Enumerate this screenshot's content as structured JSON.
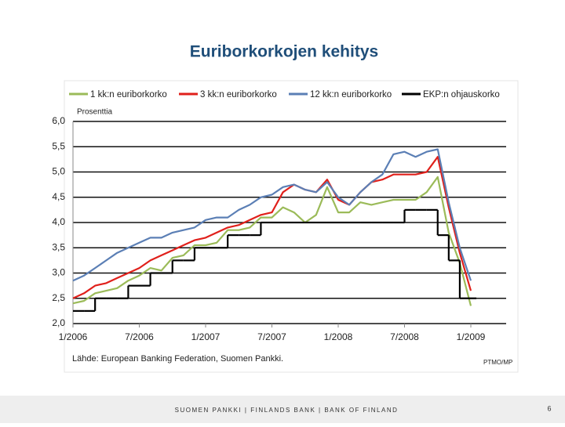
{
  "slide": {
    "footer": "SUOMEN PANKKI | FINLANDS BANK | BANK OF FINLAND",
    "page_number": "6"
  },
  "chart_data": {
    "type": "line",
    "title": "Euriborkorkojen kehitys",
    "y_label": "Prosenttia",
    "source": "Lähde: European Banking Federation, Suomen Pankki.",
    "note": "PTMO/MP",
    "categories": [
      "1/2006",
      null,
      null,
      null,
      null,
      null,
      "7/2006",
      null,
      null,
      null,
      null,
      null,
      "1/2007",
      null,
      null,
      null,
      null,
      null,
      "7/2007",
      null,
      null,
      null,
      null,
      null,
      "1/2008",
      null,
      null,
      null,
      null,
      null,
      "7/2008",
      null,
      null,
      null,
      null,
      null,
      "1/2009",
      null,
      null,
      null
    ],
    "ylim": [
      2,
      6
    ],
    "yticks": [
      {
        "value": 2,
        "label": "2,0"
      },
      {
        "value": 2.5,
        "label": "2,5"
      },
      {
        "value": 3,
        "label": "3,0"
      },
      {
        "value": 3.5,
        "label": "3,5"
      },
      {
        "value": 4,
        "label": "4,0"
      },
      {
        "value": 4.5,
        "label": "4,5"
      },
      {
        "value": 5,
        "label": "5,0"
      },
      {
        "value": 5.5,
        "label": "5,5"
      },
      {
        "value": 6,
        "label": "6,0"
      }
    ],
    "grid": true,
    "legend": "top",
    "series": [
      {
        "name": "1 kk:n euriborkorko",
        "color": "#9bbb59",
        "values": [
          2.4,
          2.45,
          2.6,
          2.65,
          2.7,
          2.85,
          2.95,
          3.1,
          3.05,
          3.3,
          3.35,
          3.55,
          3.55,
          3.6,
          3.85,
          3.85,
          3.9,
          4.1,
          4.1,
          4.3,
          4.2,
          4.0,
          4.15,
          4.7,
          4.2,
          4.2,
          4.4,
          4.35,
          4.4,
          4.45,
          4.45,
          4.45,
          4.6,
          4.9,
          3.8,
          3.2,
          2.35,
          null,
          null,
          null
        ]
      },
      {
        "name": "3 kk:n euriborkorko",
        "color": "#e0201b",
        "values": [
          2.5,
          2.6,
          2.75,
          2.8,
          2.9,
          3.0,
          3.1,
          3.25,
          3.35,
          3.45,
          3.55,
          3.65,
          3.7,
          3.8,
          3.9,
          3.95,
          4.05,
          4.15,
          4.2,
          4.6,
          4.75,
          4.65,
          4.6,
          4.85,
          4.45,
          4.35,
          4.6,
          4.8,
          4.85,
          4.95,
          4.95,
          4.95,
          5.0,
          5.3,
          4.3,
          3.4,
          2.65,
          null,
          null,
          null
        ]
      },
      {
        "name": "12 kk:n euriborkorko",
        "color": "#5b7fb5",
        "values": [
          2.85,
          2.95,
          3.1,
          3.25,
          3.4,
          3.5,
          3.6,
          3.7,
          3.7,
          3.8,
          3.85,
          3.9,
          4.05,
          4.1,
          4.1,
          4.25,
          4.35,
          4.5,
          4.55,
          4.7,
          4.75,
          4.65,
          4.6,
          4.8,
          4.5,
          4.35,
          4.6,
          4.8,
          4.95,
          5.35,
          5.4,
          5.3,
          5.4,
          5.45,
          4.4,
          3.5,
          2.85,
          null,
          null,
          null
        ]
      },
      {
        "name": "EKP:n ohjauskorko",
        "color": "#000000",
        "step": true,
        "values": [
          2.25,
          2.25,
          2.5,
          2.5,
          2.5,
          2.75,
          2.75,
          3.0,
          3.0,
          3.25,
          3.25,
          3.5,
          3.5,
          3.5,
          3.75,
          3.75,
          3.75,
          4.0,
          4.0,
          4.0,
          4.0,
          4.0,
          4.0,
          4.0,
          4.0,
          4.0,
          4.0,
          4.0,
          4.0,
          4.0,
          4.25,
          4.25,
          4.25,
          3.75,
          3.25,
          2.5,
          2.5,
          null,
          null,
          null
        ]
      }
    ]
  }
}
